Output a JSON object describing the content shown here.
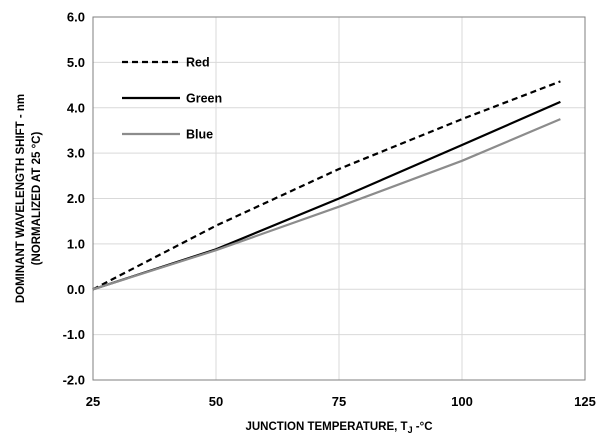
{
  "chart_data": {
    "type": "line",
    "xlabel": "JUNCTION TEMPERATURE, T",
    "xlabel_sub": "J",
    "xlabel_suffix": " -°C",
    "ylabel": "DOMINANT WAVELENGTH SHIFT  -  nm",
    "ylabel2": "(NORMALIZED AT 25 °C)",
    "xlim": [
      25,
      125
    ],
    "ylim": [
      -2.0,
      6.0
    ],
    "x_ticks": [
      25,
      50,
      75,
      100,
      125
    ],
    "x_tick_labels": [
      "25",
      "50",
      "75",
      "100",
      "125"
    ],
    "y_ticks": [
      -2,
      -1,
      0,
      1,
      2,
      3,
      4,
      5,
      6
    ],
    "y_tick_labels": [
      "-2.0",
      "-1.0",
      "0.0",
      "1.0",
      "2.0",
      "3.0",
      "4.0",
      "5.0",
      "6.0"
    ],
    "grid": true,
    "legend_position": "top-left",
    "series": [
      {
        "name": "Red",
        "color": "#000000",
        "dash": "dashed",
        "x": [
          25,
          50,
          75,
          100,
          120
        ],
        "y": [
          0.0,
          1.4,
          2.65,
          3.75,
          4.58
        ]
      },
      {
        "name": "Green",
        "color": "#000000",
        "dash": "solid",
        "x": [
          25,
          50,
          75,
          100,
          120
        ],
        "y": [
          0.0,
          0.88,
          2.0,
          3.18,
          4.13
        ]
      },
      {
        "name": "Blue",
        "color": "#8c8c8c",
        "dash": "solid",
        "x": [
          25,
          50,
          75,
          100,
          120
        ],
        "y": [
          0.0,
          0.86,
          1.82,
          2.83,
          3.75
        ]
      }
    ]
  }
}
